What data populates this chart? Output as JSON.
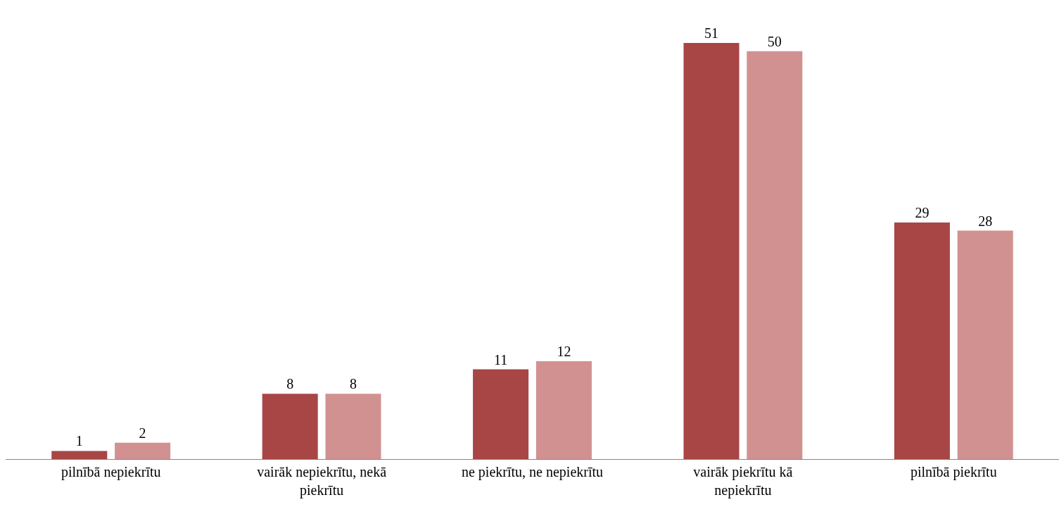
{
  "chart_data": {
    "type": "bar",
    "categories": [
      "pilnībā nepiekrītu",
      "vairāk nepiekrītu, nekā piekrītu",
      "ne piekrītu, ne nepiekrītu",
      "vairāk piekrītu kā nepiekrītu",
      "pilnībā piekrītu"
    ],
    "series": [
      {
        "color": "#a84645",
        "values": [
          1,
          8,
          11,
          51,
          29
        ]
      },
      {
        "color": "#d29191",
        "values": [
          2,
          8,
          12,
          50,
          28
        ]
      }
    ],
    "data_labels": true
  }
}
